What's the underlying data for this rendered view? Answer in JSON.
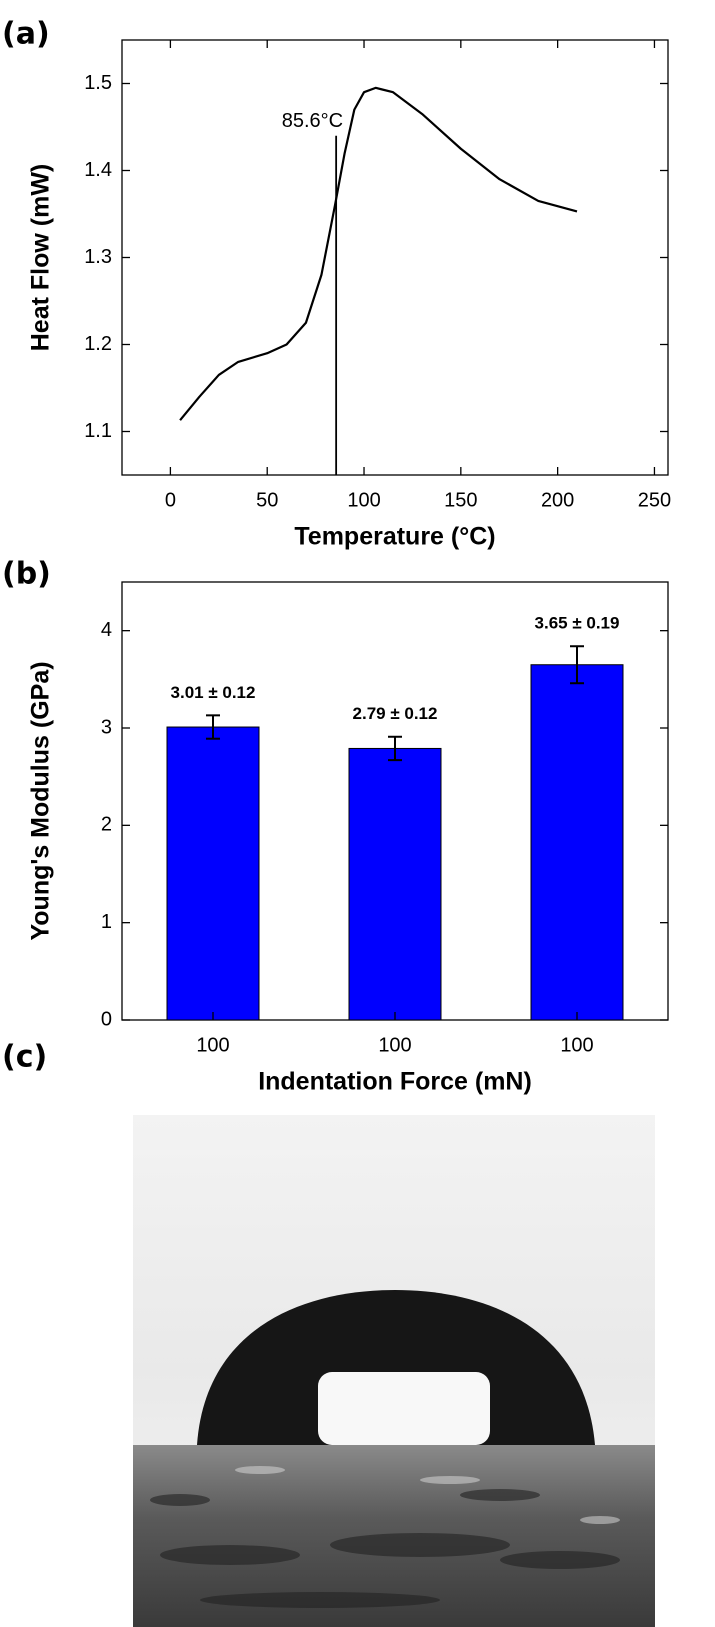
{
  "chart_data": [
    {
      "type": "line",
      "label": "(a)",
      "xlabel": "Temperature (°C)",
      "ylabel": "Heat Flow (mW)",
      "x": [
        5,
        15,
        25,
        35,
        50,
        60,
        70,
        78,
        85,
        90,
        95,
        100,
        106,
        115,
        130,
        150,
        170,
        190,
        210
      ],
      "y": [
        1.113,
        1.14,
        1.165,
        1.18,
        1.19,
        1.2,
        1.225,
        1.28,
        1.36,
        1.42,
        1.47,
        1.49,
        1.495,
        1.49,
        1.465,
        1.425,
        1.39,
        1.365,
        1.353
      ],
      "color": "#000000",
      "xlim": [
        -25,
        257
      ],
      "xticks": [
        0,
        50,
        100,
        150,
        200,
        250
      ],
      "ylim": [
        1.05,
        1.55
      ],
      "yticks": [
        1.1,
        1.2,
        1.3,
        1.4,
        1.5
      ],
      "annotation": {
        "text": "85.6°C",
        "x": 85.6,
        "y": 1.44
      }
    },
    {
      "type": "bar",
      "label": "(b)",
      "xlabel": "Indentation Force (mN)",
      "ylabel": "Young's Modulus (GPa)",
      "categories": [
        "100",
        "100",
        "100"
      ],
      "values": [
        3.01,
        2.79,
        3.65
      ],
      "errors": [
        0.12,
        0.12,
        0.19
      ],
      "value_labels": [
        "3.01 ± 0.12",
        "2.79 ± 0.12",
        "3.65 ± 0.19"
      ],
      "color": "#0000ff",
      "ylim": [
        0,
        4.5
      ],
      "yticks": [
        0,
        1,
        2,
        3,
        4
      ]
    }
  ],
  "image_panel": {
    "label": "(c)"
  }
}
